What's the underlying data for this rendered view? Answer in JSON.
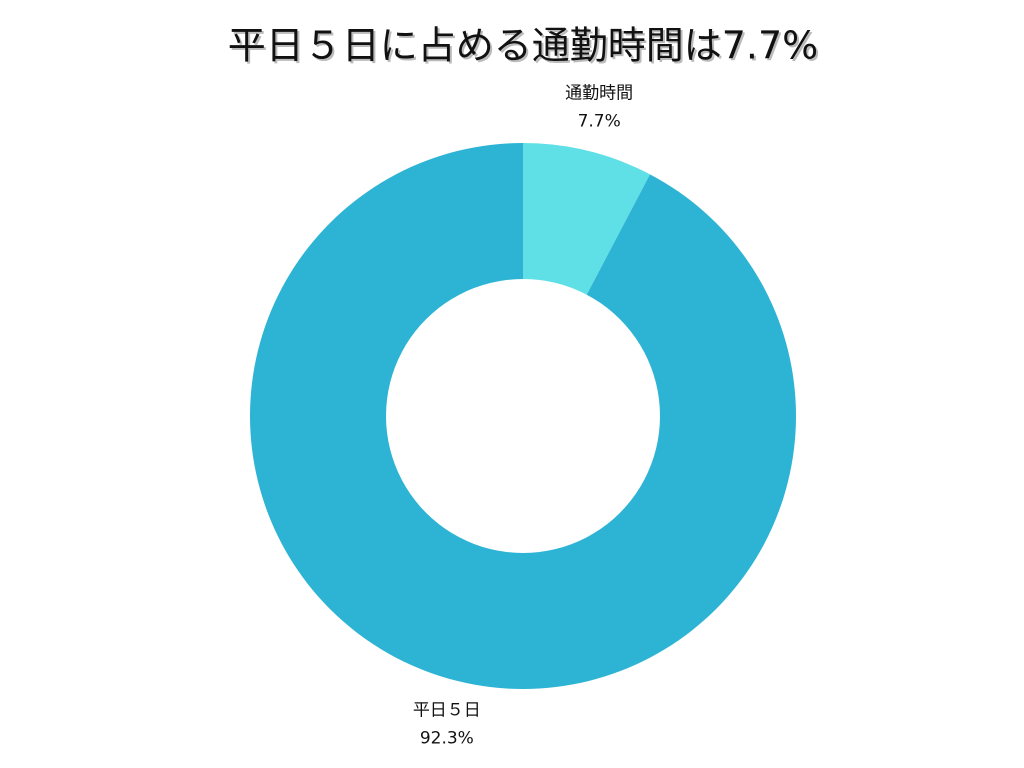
{
  "chart_data": {
    "type": "donut",
    "title": "平日５日に占める通勤時間は7.7%",
    "categories": [
      "通勤時間",
      "平日５日"
    ],
    "values": [
      7.7,
      92.3
    ],
    "value_labels": [
      "7.7%",
      "92.3%"
    ],
    "colors": [
      "#5ee0e6",
      "#2db4d4"
    ]
  }
}
